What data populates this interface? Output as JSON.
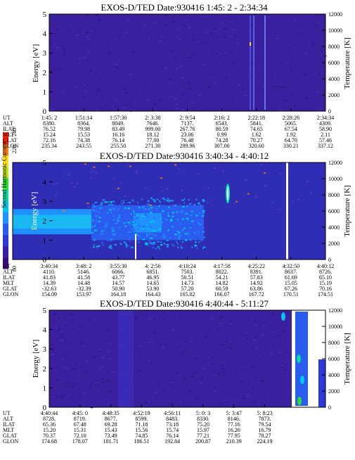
{
  "colorbar": {
    "title": "Second Harmonic Current",
    "ticks": [
      "80",
      "100",
      "120",
      "140",
      "160",
      "180",
      "200",
      "220",
      "240"
    ],
    "colors": [
      "#3a0a78",
      "#3b1ea8",
      "#2d38d8",
      "#2a5cf0",
      "#1e90ff",
      "#00c8e8",
      "#00e0a0",
      "#30e030",
      "#c8e800",
      "#ffe000",
      "#ff8000",
      "#ff2000"
    ]
  },
  "row_labels": [
    "UT",
    "ALT",
    "ILAT",
    "MLT",
    "GLAT",
    "GLON"
  ],
  "panels": [
    {
      "title": "EXOS-D/TED   Date:930416   1:45: 2 - 2:34:34",
      "ylabel": "Energy [eV]",
      "y2label": "Temperature [K]",
      "yticks": [
        "0",
        "1",
        "2",
        "3",
        "4",
        "5"
      ],
      "y2ticks": [
        "0",
        "2000",
        "4000",
        "6000",
        "8000",
        "10000",
        "12000"
      ],
      "columns": [
        [
          "1:45: 2",
          "8380.",
          "76.52",
          "15.24",
          "72.16",
          "235.34"
        ],
        [
          "1:51:14",
          "8364.",
          "79.98",
          "15.53",
          "74.38",
          "243.55"
        ],
        [
          "1:57:30",
          "8049.",
          "83.49",
          "16.16",
          "76.14",
          "255.50"
        ],
        [
          "2: 3:38",
          "7646.",
          "999.00",
          "18.12",
          "77.00",
          "271.30"
        ],
        [
          "2: 9:54",
          "7137.",
          "267.76",
          "23.06",
          "76.48",
          "289.96"
        ],
        [
          "2:16: 2",
          "6543.",
          "80.59",
          "0.99",
          "74.28",
          "307.00"
        ],
        [
          "2:22:18",
          "5841.",
          "74.65",
          "1.62",
          "70.27",
          "320.60"
        ],
        [
          "2:28:26",
          "5065.",
          "67.54",
          "1.92",
          "64.70",
          "330.21"
        ],
        [
          "2:34:34",
          "4309.",
          "58.90",
          "2.11",
          "57.46",
          "337.12"
        ]
      ]
    },
    {
      "title": "EXOS-D/TED   Date:930416   3:40:34 - 4:40:12",
      "ylabel": "Energy [eV]",
      "y2label": "Temperature [K]",
      "yticks": [
        "0",
        "1",
        "2",
        "3",
        "4",
        "5"
      ],
      "y2ticks": [
        "0",
        "2000",
        "4000",
        "6000",
        "8000",
        "10000",
        "12000"
      ],
      "columns": [
        [
          "3:40:34",
          "4110.",
          "41.83",
          "14.39",
          "-32.63",
          "154.09"
        ],
        [
          "3:48: 2",
          "5146.",
          "41.58",
          "14.48",
          "-32.39",
          "153.97"
        ],
        [
          "3:55:30",
          "6066.",
          "43.77",
          "14.57",
          "50.90",
          "164.18"
        ],
        [
          "4: 2:56",
          "6851.",
          "46.95",
          "14.65",
          "53.90",
          "164.43"
        ],
        [
          "4:10:24",
          "7503.",
          "50.51",
          "14.73",
          "57.20",
          "165.02"
        ],
        [
          "4:17:58",
          "8022.",
          "54.21",
          "14.82",
          "60.59",
          "166.07"
        ],
        [
          "4:25:22",
          "8391.",
          "57.83",
          "14.92",
          "63.86",
          "167.72"
        ],
        [
          "4:32:50",
          "8637.",
          "61.69",
          "15.05",
          "67.26",
          "170.51"
        ],
        [
          "4:40:12",
          "8726.",
          "65.10",
          "15.19",
          "70.16",
          "174.51"
        ]
      ]
    },
    {
      "title": "EXOS-D/TED   Date:930416   4:40:44 - 5:11:27",
      "ylabel": "Energy [eV]",
      "y2label": "Temperature [K]",
      "yticks": [
        "0",
        "1",
        "2",
        "3",
        "4",
        "5"
      ],
      "y2ticks": [
        "0",
        "2000",
        "4000",
        "6000",
        "8000",
        "10000",
        "12000"
      ],
      "columns": [
        [
          "4:40:44",
          "8728.",
          "65.36",
          "15.20",
          "70.37",
          "174.68"
        ],
        [
          "4:45: 0",
          "8719.",
          "67.48",
          "15.31",
          "72.10",
          "178.07"
        ],
        [
          "4:48:35",
          "8677.",
          "69.28",
          "15.43",
          "73.49",
          "181.71"
        ],
        [
          "4:52:19",
          "8599.",
          "71.18",
          "15.56",
          "74.85",
          "186.51"
        ],
        [
          "4:56:11",
          "8483.",
          "73.18",
          "15.74",
          "76.14",
          "192.84"
        ],
        [
          "5: 0: 3",
          "8330.",
          "75.20",
          "15.97",
          "77.21",
          "200.87"
        ],
        [
          "5: 3:47",
          "8146.",
          "77.16",
          "16.26",
          "77.95",
          "210.39"
        ],
        [
          "5: 8:23",
          "7873.",
          "79.54",
          "16.79",
          "78.27",
          "224.19"
        ]
      ]
    }
  ],
  "chart_data": [
    {
      "type": "heatmap",
      "title": "EXOS-D/TED   Date:930416   1:45: 2 - 2:34:34",
      "ylabel": "Energy [eV]",
      "y2label": "Temperature [K]",
      "ylim": [
        0,
        5
      ],
      "y2lim": [
        0,
        12000
      ],
      "x": [
        "1:45: 2",
        "1:51:14",
        "1:57:30",
        "2: 3:38",
        "2: 9:54",
        "2:16: 2",
        "2:22:18",
        "2:28:26",
        "2:34:34"
      ],
      "background_level": 90
    },
    {
      "type": "heatmap",
      "title": "EXOS-D/TED   Date:930416   3:40:34 - 4:40:12",
      "ylabel": "Energy [eV]",
      "y2label": "Temperature [K]",
      "ylim": [
        0,
        5
      ],
      "y2lim": [
        0,
        12000
      ],
      "x": [
        "3:40:34",
        "3:48: 2",
        "3:55:30",
        "4: 2:56",
        "4:10:24",
        "4:17:58",
        "4:25:22",
        "4:32:50",
        "4:40:12"
      ],
      "peak_band_energy": [
        1.3,
        2.6
      ],
      "peak_level": 165
    },
    {
      "type": "heatmap",
      "title": "EXOS-D/TED   Date:930416   4:40:44 - 5:11:27",
      "ylabel": "Energy [eV]",
      "y2label": "Temperature [K]",
      "ylim": [
        0,
        5
      ],
      "y2lim": [
        0,
        12000
      ],
      "x": [
        "4:40:44",
        "4:45: 0",
        "4:48:35",
        "4:52:19",
        "4:56:11",
        "5: 0: 3",
        "5: 3:47",
        "5: 8:23"
      ],
      "background_level": 95
    }
  ]
}
